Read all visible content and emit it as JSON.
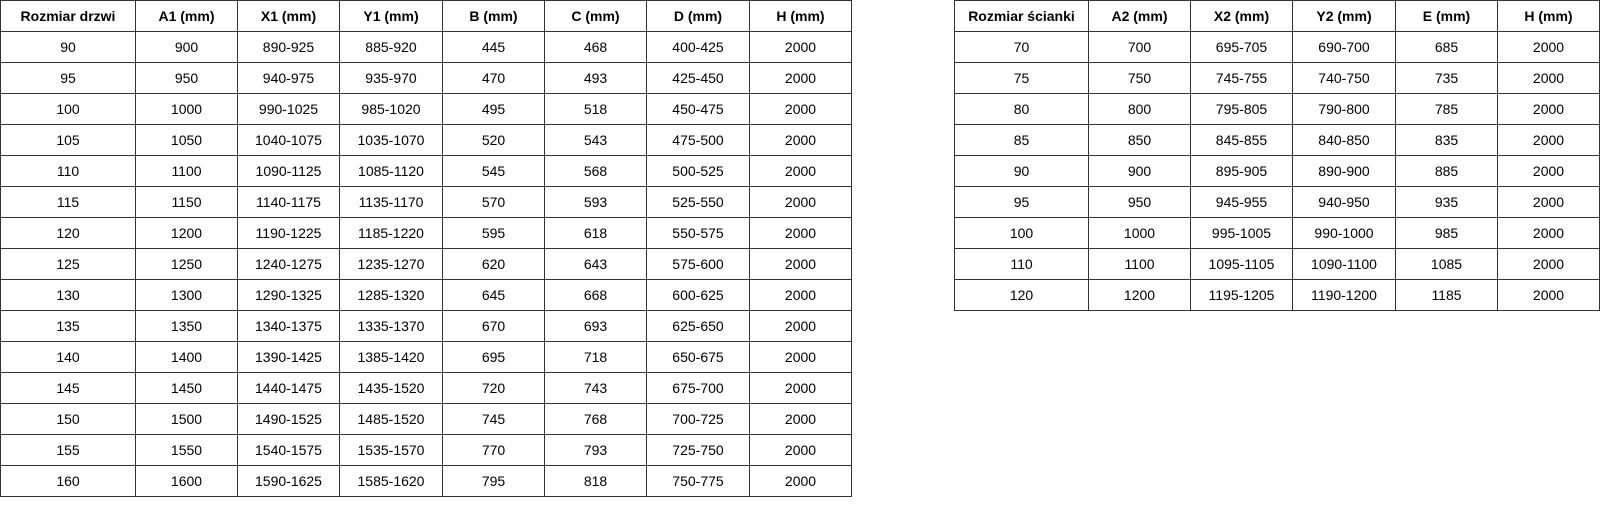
{
  "left_table": {
    "header": [
      "Rozmiar drzwi",
      "A1 (mm)",
      "X1 (mm)",
      "Y1 (mm)",
      "B (mm)",
      "C (mm)",
      "D (mm)",
      "H (mm)"
    ],
    "rows": [
      [
        "90",
        "900",
        "890-925",
        "885-920",
        "445",
        "468",
        "400-425",
        "2000"
      ],
      [
        "95",
        "950",
        "940-975",
        "935-970",
        "470",
        "493",
        "425-450",
        "2000"
      ],
      [
        "100",
        "1000",
        "990-1025",
        "985-1020",
        "495",
        "518",
        "450-475",
        "2000"
      ],
      [
        "105",
        "1050",
        "1040-1075",
        "1035-1070",
        "520",
        "543",
        "475-500",
        "2000"
      ],
      [
        "110",
        "1100",
        "1090-1125",
        "1085-1120",
        "545",
        "568",
        "500-525",
        "2000"
      ],
      [
        "115",
        "1150",
        "1140-1175",
        "1135-1170",
        "570",
        "593",
        "525-550",
        "2000"
      ],
      [
        "120",
        "1200",
        "1190-1225",
        "1185-1220",
        "595",
        "618",
        "550-575",
        "2000"
      ],
      [
        "125",
        "1250",
        "1240-1275",
        "1235-1270",
        "620",
        "643",
        "575-600",
        "2000"
      ],
      [
        "130",
        "1300",
        "1290-1325",
        "1285-1320",
        "645",
        "668",
        "600-625",
        "2000"
      ],
      [
        "135",
        "1350",
        "1340-1375",
        "1335-1370",
        "670",
        "693",
        "625-650",
        "2000"
      ],
      [
        "140",
        "1400",
        "1390-1425",
        "1385-1420",
        "695",
        "718",
        "650-675",
        "2000"
      ],
      [
        "145",
        "1450",
        "1440-1475",
        "1435-1520",
        "720",
        "743",
        "675-700",
        "2000"
      ],
      [
        "150",
        "1500",
        "1490-1525",
        "1485-1520",
        "745",
        "768",
        "700-725",
        "2000"
      ],
      [
        "155",
        "1550",
        "1540-1575",
        "1535-1570",
        "770",
        "793",
        "725-750",
        "2000"
      ],
      [
        "160",
        "1600",
        "1590-1625",
        "1585-1620",
        "795",
        "818",
        "750-775",
        "2000"
      ]
    ]
  },
  "right_table": {
    "header": [
      "Rozmiar ścianki",
      "A2 (mm)",
      "X2 (mm)",
      "Y2 (mm)",
      "E (mm)",
      "H (mm)"
    ],
    "rows": [
      [
        "70",
        "700",
        "695-705",
        "690-700",
        "685",
        "2000"
      ],
      [
        "75",
        "750",
        "745-755",
        "740-750",
        "735",
        "2000"
      ],
      [
        "80",
        "800",
        "795-805",
        "790-800",
        "785",
        "2000"
      ],
      [
        "85",
        "850",
        "845-855",
        "840-850",
        "835",
        "2000"
      ],
      [
        "90",
        "900",
        "895-905",
        "890-900",
        "885",
        "2000"
      ],
      [
        "95",
        "950",
        "945-955",
        "940-950",
        "935",
        "2000"
      ],
      [
        "100",
        "1000",
        "995-1005",
        "990-1000",
        "985",
        "2000"
      ],
      [
        "110",
        "1100",
        "1095-1105",
        "1090-1100",
        "1085",
        "2000"
      ],
      [
        "120",
        "1200",
        "1195-1205",
        "1190-1200",
        "1185",
        "2000"
      ]
    ]
  }
}
